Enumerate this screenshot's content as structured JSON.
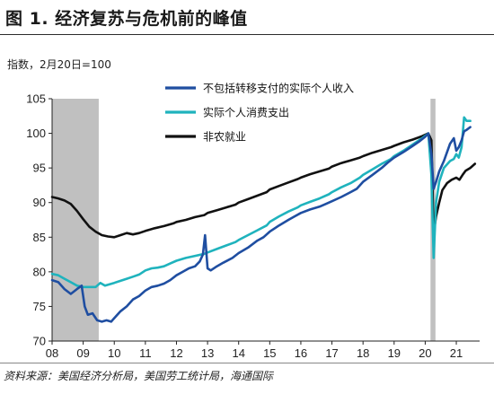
{
  "page": {
    "title": "图 1. 经济复苏与危机前的峰值",
    "source": "资料来源：美国经济分析局，美国劳工统计局，海通国际"
  },
  "chart_data": {
    "type": "line",
    "unit_label": "指数，2月20日=100",
    "x_ticks": [
      "08",
      "09",
      "10",
      "11",
      "12",
      "13",
      "14",
      "15",
      "16",
      "17",
      "18",
      "19",
      "20",
      "21"
    ],
    "xlim": [
      2008.0,
      2021.75
    ],
    "ylim": [
      70,
      105
    ],
    "y_ticks": [
      70,
      75,
      80,
      85,
      90,
      95,
      100,
      105
    ],
    "grid": false,
    "legend_placement": "top-center",
    "recessions": [
      [
        2008.0,
        2009.5
      ],
      [
        2020.17,
        2020.33
      ]
    ],
    "recession_color": "#c0c0c0",
    "series": [
      {
        "name": "不包括转移支付的实际个人收入",
        "color": "#1f4ea1",
        "points": [
          [
            2008.0,
            78.8
          ],
          [
            2008.2,
            78.5
          ],
          [
            2008.4,
            77.5
          ],
          [
            2008.6,
            76.8
          ],
          [
            2008.8,
            77.5
          ],
          [
            2008.95,
            78.0
          ],
          [
            2009.05,
            75.0
          ],
          [
            2009.15,
            73.8
          ],
          [
            2009.3,
            74.0
          ],
          [
            2009.45,
            73.0
          ],
          [
            2009.6,
            72.8
          ],
          [
            2009.75,
            73.0
          ],
          [
            2009.9,
            72.8
          ],
          [
            2010.0,
            73.3
          ],
          [
            2010.2,
            74.3
          ],
          [
            2010.4,
            75.0
          ],
          [
            2010.6,
            76.0
          ],
          [
            2010.8,
            76.5
          ],
          [
            2011.0,
            77.3
          ],
          [
            2011.2,
            77.8
          ],
          [
            2011.4,
            78.0
          ],
          [
            2011.6,
            78.3
          ],
          [
            2011.8,
            78.8
          ],
          [
            2012.0,
            79.5
          ],
          [
            2012.2,
            80.0
          ],
          [
            2012.4,
            80.5
          ],
          [
            2012.6,
            80.8
          ],
          [
            2012.75,
            81.5
          ],
          [
            2012.85,
            82.5
          ],
          [
            2012.92,
            85.3
          ],
          [
            2013.0,
            80.5
          ],
          [
            2013.1,
            80.2
          ],
          [
            2013.3,
            80.8
          ],
          [
            2013.5,
            81.3
          ],
          [
            2013.8,
            82.0
          ],
          [
            2014.0,
            82.7
          ],
          [
            2014.3,
            83.5
          ],
          [
            2014.6,
            84.5
          ],
          [
            2014.8,
            85.0
          ],
          [
            2015.0,
            85.8
          ],
          [
            2015.3,
            86.7
          ],
          [
            2015.6,
            87.5
          ],
          [
            2015.8,
            88.0
          ],
          [
            2016.0,
            88.5
          ],
          [
            2016.3,
            89.0
          ],
          [
            2016.6,
            89.4
          ],
          [
            2016.8,
            89.8
          ],
          [
            2017.0,
            90.2
          ],
          [
            2017.3,
            90.8
          ],
          [
            2017.6,
            91.5
          ],
          [
            2017.8,
            92.0
          ],
          [
            2018.0,
            93.0
          ],
          [
            2018.3,
            94.0
          ],
          [
            2018.6,
            95.0
          ],
          [
            2018.8,
            95.8
          ],
          [
            2019.0,
            96.5
          ],
          [
            2019.3,
            97.3
          ],
          [
            2019.6,
            98.2
          ],
          [
            2019.8,
            98.8
          ],
          [
            2020.0,
            99.5
          ],
          [
            2020.1,
            100.0
          ],
          [
            2020.2,
            97.0
          ],
          [
            2020.27,
            92.0
          ],
          [
            2020.35,
            93.0
          ],
          [
            2020.45,
            94.5
          ],
          [
            2020.6,
            96.0
          ],
          [
            2020.8,
            98.5
          ],
          [
            2020.92,
            99.3
          ],
          [
            2021.0,
            97.5
          ],
          [
            2021.08,
            98.0
          ],
          [
            2021.17,
            99.0
          ],
          [
            2021.25,
            100.3
          ],
          [
            2021.33,
            100.5
          ],
          [
            2021.45,
            100.9
          ]
        ]
      },
      {
        "name": "实际个人消费支出",
        "color": "#1fb3bd",
        "points": [
          [
            2008.0,
            79.7
          ],
          [
            2008.2,
            79.5
          ],
          [
            2008.4,
            79.0
          ],
          [
            2008.6,
            78.5
          ],
          [
            2008.8,
            78.0
          ],
          [
            2009.0,
            77.8
          ],
          [
            2009.2,
            77.8
          ],
          [
            2009.4,
            77.8
          ],
          [
            2009.55,
            78.4
          ],
          [
            2009.7,
            78.0
          ],
          [
            2009.85,
            78.2
          ],
          [
            2010.0,
            78.4
          ],
          [
            2010.2,
            78.7
          ],
          [
            2010.4,
            79.0
          ],
          [
            2010.6,
            79.3
          ],
          [
            2010.8,
            79.6
          ],
          [
            2011.0,
            80.2
          ],
          [
            2011.2,
            80.5
          ],
          [
            2011.4,
            80.6
          ],
          [
            2011.6,
            80.8
          ],
          [
            2011.8,
            81.2
          ],
          [
            2012.0,
            81.6
          ],
          [
            2012.3,
            82.0
          ],
          [
            2012.6,
            82.3
          ],
          [
            2012.9,
            82.6
          ],
          [
            2013.0,
            82.8
          ],
          [
            2013.3,
            83.3
          ],
          [
            2013.6,
            83.8
          ],
          [
            2013.9,
            84.3
          ],
          [
            2014.0,
            84.6
          ],
          [
            2014.3,
            85.3
          ],
          [
            2014.6,
            86.0
          ],
          [
            2014.9,
            86.7
          ],
          [
            2015.0,
            87.2
          ],
          [
            2015.3,
            88.0
          ],
          [
            2015.6,
            88.7
          ],
          [
            2015.9,
            89.3
          ],
          [
            2016.0,
            89.6
          ],
          [
            2016.3,
            90.1
          ],
          [
            2016.6,
            90.6
          ],
          [
            2016.9,
            91.2
          ],
          [
            2017.0,
            91.5
          ],
          [
            2017.3,
            92.2
          ],
          [
            2017.6,
            92.8
          ],
          [
            2017.9,
            93.6
          ],
          [
            2018.0,
            94.0
          ],
          [
            2018.3,
            94.8
          ],
          [
            2018.6,
            95.6
          ],
          [
            2018.9,
            96.3
          ],
          [
            2019.0,
            96.7
          ],
          [
            2019.3,
            97.5
          ],
          [
            2019.6,
            98.4
          ],
          [
            2019.9,
            99.3
          ],
          [
            2020.1,
            100.0
          ],
          [
            2020.2,
            94.0
          ],
          [
            2020.27,
            82.0
          ],
          [
            2020.35,
            90.0
          ],
          [
            2020.45,
            93.0
          ],
          [
            2020.6,
            95.0
          ],
          [
            2020.8,
            96.0
          ],
          [
            2020.92,
            96.3
          ],
          [
            2021.0,
            97.0
          ],
          [
            2021.08,
            96.5
          ],
          [
            2021.17,
            98.0
          ],
          [
            2021.25,
            102.3
          ],
          [
            2021.33,
            101.8
          ],
          [
            2021.45,
            101.8
          ]
        ]
      },
      {
        "name": "非农就业",
        "color": "#111111",
        "points": [
          [
            2008.0,
            90.8
          ],
          [
            2008.2,
            90.6
          ],
          [
            2008.4,
            90.3
          ],
          [
            2008.6,
            89.8
          ],
          [
            2008.8,
            88.8
          ],
          [
            2009.0,
            87.6
          ],
          [
            2009.2,
            86.5
          ],
          [
            2009.4,
            85.8
          ],
          [
            2009.6,
            85.3
          ],
          [
            2009.8,
            85.1
          ],
          [
            2010.0,
            85.0
          ],
          [
            2010.2,
            85.3
          ],
          [
            2010.4,
            85.6
          ],
          [
            2010.6,
            85.4
          ],
          [
            2010.8,
            85.6
          ],
          [
            2011.0,
            85.9
          ],
          [
            2011.3,
            86.3
          ],
          [
            2011.6,
            86.6
          ],
          [
            2011.9,
            87.0
          ],
          [
            2012.0,
            87.2
          ],
          [
            2012.3,
            87.5
          ],
          [
            2012.6,
            87.9
          ],
          [
            2012.9,
            88.2
          ],
          [
            2013.0,
            88.5
          ],
          [
            2013.3,
            88.9
          ],
          [
            2013.6,
            89.3
          ],
          [
            2013.9,
            89.7
          ],
          [
            2014.0,
            90.0
          ],
          [
            2014.3,
            90.5
          ],
          [
            2014.6,
            91.0
          ],
          [
            2014.9,
            91.5
          ],
          [
            2015.0,
            91.9
          ],
          [
            2015.3,
            92.4
          ],
          [
            2015.6,
            92.9
          ],
          [
            2015.9,
            93.4
          ],
          [
            2016.0,
            93.6
          ],
          [
            2016.3,
            94.1
          ],
          [
            2016.6,
            94.5
          ],
          [
            2016.9,
            94.9
          ],
          [
            2017.0,
            95.2
          ],
          [
            2017.3,
            95.7
          ],
          [
            2017.6,
            96.1
          ],
          [
            2017.9,
            96.5
          ],
          [
            2018.0,
            96.7
          ],
          [
            2018.3,
            97.2
          ],
          [
            2018.6,
            97.6
          ],
          [
            2018.9,
            98.0
          ],
          [
            2019.0,
            98.2
          ],
          [
            2019.3,
            98.7
          ],
          [
            2019.6,
            99.1
          ],
          [
            2019.9,
            99.6
          ],
          [
            2020.1,
            100.0
          ],
          [
            2020.2,
            99.0
          ],
          [
            2020.27,
            85.5
          ],
          [
            2020.35,
            88.0
          ],
          [
            2020.45,
            90.0
          ],
          [
            2020.55,
            91.8
          ],
          [
            2020.7,
            92.8
          ],
          [
            2020.85,
            93.3
          ],
          [
            2021.0,
            93.6
          ],
          [
            2021.1,
            93.3
          ],
          [
            2021.2,
            94.0
          ],
          [
            2021.3,
            94.6
          ],
          [
            2021.45,
            95.0
          ],
          [
            2021.6,
            95.6
          ]
        ]
      }
    ]
  }
}
